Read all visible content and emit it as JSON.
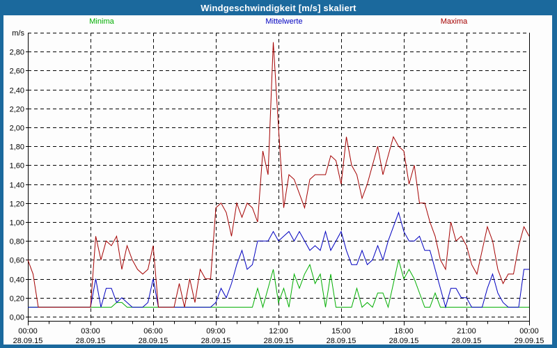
{
  "window": {
    "title": "Windgeschwindigkeit [m/s] skaliert",
    "accent_color": "#1B699D",
    "background_color": "#FDFDFD"
  },
  "legend": [
    {
      "label": "Minima",
      "color": "#00AE00"
    },
    {
      "label": "Mittelwerte",
      "color": "#0000C0"
    },
    {
      "label": "Maxima",
      "color": "#A40000"
    }
  ],
  "chart_data": {
    "type": "line",
    "title": "Windgeschwindigkeit [m/s] skaliert",
    "ylabel": "m/s",
    "ylim": [
      0,
      3.0
    ],
    "y_tick_step": 0.2,
    "y_tick_labels": [
      "0,00",
      "0,20",
      "0,40",
      "0,60",
      "0,80",
      "1,00",
      "1,20",
      "1,40",
      "1,60",
      "1,80",
      "2,00",
      "2,20",
      "2,40",
      "2,60",
      "2,80"
    ],
    "grid": true,
    "grid_style": "dashed",
    "x_hours_range": [
      0,
      24
    ],
    "x_major_tick_hours": 3,
    "x_minor_tick_hours": 1,
    "x_tick_times": [
      "00:00",
      "03:00",
      "06:00",
      "09:00",
      "12:00",
      "15:00",
      "18:00",
      "21:00",
      "00:00"
    ],
    "x_tick_dates": [
      "28.09.15",
      "28.09.15",
      "28.09.15",
      "28.09.15",
      "28.09.15",
      "28.09.15",
      "28.09.15",
      "28.09.15",
      "29.09.15"
    ],
    "sample_interval_minutes": 15,
    "series": [
      {
        "name": "Minima",
        "color": "#00AE00",
        "values": [
          0.1,
          0.1,
          0.1,
          0.1,
          0.1,
          0.1,
          0.1,
          0.1,
          0.1,
          0.1,
          0.1,
          0.1,
          0.1,
          0.1,
          0.1,
          0.1,
          0.1,
          0.15,
          0.15,
          0.1,
          0.1,
          0.1,
          0.1,
          0.1,
          0.1,
          0.1,
          0.1,
          0.1,
          0.1,
          0.1,
          0.1,
          0.1,
          0.1,
          0.1,
          0.1,
          0.1,
          0.1,
          0.1,
          0.1,
          0.1,
          0.1,
          0.1,
          0.1,
          0.1,
          0.3,
          0.1,
          0.3,
          0.5,
          0.15,
          0.3,
          0.1,
          0.45,
          0.3,
          0.45,
          0.55,
          0.35,
          0.45,
          0.1,
          0.45,
          0.1,
          0.1,
          0.1,
          0.1,
          0.3,
          0.1,
          0.15,
          0.1,
          0.25,
          0.25,
          0.1,
          0.35,
          0.6,
          0.4,
          0.5,
          0.4,
          0.25,
          0.1,
          0.1,
          0.25,
          0.1,
          0.1,
          0.1,
          0.1,
          0.1,
          0.1,
          0.1,
          0.1,
          0.1,
          0.1,
          0.1,
          0.1,
          0.1,
          0.1,
          0.1,
          0.1,
          0.1,
          0.1
        ]
      },
      {
        "name": "Mittelwerte",
        "color": "#0000C0",
        "values": [
          0.1,
          0.1,
          0.1,
          0.1,
          0.1,
          0.1,
          0.1,
          0.1,
          0.1,
          0.1,
          0.1,
          0.1,
          0.1,
          0.4,
          0.1,
          0.3,
          0.3,
          0.15,
          0.2,
          0.15,
          0.1,
          0.1,
          0.1,
          0.15,
          0.4,
          0.1,
          0.1,
          0.1,
          0.1,
          0.1,
          0.1,
          0.1,
          0.1,
          0.1,
          0.1,
          0.1,
          0.15,
          0.3,
          0.2,
          0.35,
          0.55,
          0.7,
          0.5,
          0.55,
          0.8,
          0.8,
          0.8,
          0.9,
          0.8,
          0.85,
          0.9,
          0.8,
          0.9,
          0.8,
          0.7,
          0.75,
          0.7,
          0.9,
          0.7,
          0.8,
          0.9,
          0.7,
          0.55,
          0.55,
          0.7,
          0.55,
          0.6,
          0.75,
          0.6,
          0.8,
          0.95,
          1.1,
          0.9,
          0.8,
          0.8,
          0.85,
          0.7,
          0.7,
          0.5,
          0.3,
          0.1,
          0.3,
          0.3,
          0.2,
          0.2,
          0.1,
          0.1,
          0.1,
          0.3,
          0.45,
          0.25,
          0.15,
          0.1,
          0.1,
          0.1,
          0.5,
          0.5
        ]
      },
      {
        "name": "Maxima",
        "color": "#A40000",
        "values": [
          0.6,
          0.45,
          0.1,
          0.1,
          0.1,
          0.1,
          0.1,
          0.1,
          0.1,
          0.1,
          0.1,
          0.1,
          0.1,
          0.85,
          0.6,
          0.8,
          0.75,
          0.85,
          0.5,
          0.75,
          0.6,
          0.5,
          0.45,
          0.5,
          0.75,
          0.1,
          0.1,
          0.1,
          0.1,
          0.35,
          0.1,
          0.4,
          0.15,
          0.5,
          0.4,
          0.4,
          1.15,
          1.2,
          1.1,
          0.85,
          1.2,
          1.05,
          1.2,
          1.15,
          1.0,
          1.75,
          1.5,
          2.9,
          2.0,
          1.15,
          1.5,
          1.45,
          1.3,
          1.15,
          1.45,
          1.5,
          1.5,
          1.5,
          1.7,
          1.65,
          1.4,
          1.9,
          1.6,
          1.5,
          1.25,
          1.4,
          1.6,
          1.8,
          1.5,
          1.7,
          1.9,
          1.8,
          1.75,
          1.4,
          1.6,
          1.2,
          1.2,
          1.0,
          0.85,
          0.6,
          0.5,
          1.0,
          0.8,
          0.85,
          0.75,
          0.55,
          0.45,
          0.7,
          0.95,
          0.8,
          0.5,
          0.35,
          0.45,
          0.45,
          0.75,
          0.95,
          0.85
        ]
      }
    ]
  }
}
